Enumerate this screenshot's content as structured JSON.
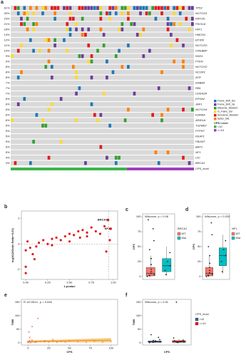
{
  "chart_data": [
    {
      "type": "oncoprint",
      "panel": "a",
      "categories": [
        "TP53",
        "NOTCH1",
        "KMT2D",
        "PIK3CA",
        "FAT1",
        "HMCN1",
        "EP300",
        "NOTCH3",
        "CREBBP",
        "NSD1",
        "PTEN",
        "NOTCH2",
        "NCOR1",
        "ATR",
        "ERBB4",
        "RB1",
        "CDKN2A",
        "EPHA2",
        "JAK1",
        "NOTCH4",
        "KDM6A",
        "ARID1A",
        "TGFBR2",
        "PTPRT",
        "KEAP1",
        "FBXW7",
        "BAP1",
        "NF1",
        "CIC",
        "BRCA1"
      ],
      "values": [
        61,
        30,
        23,
        21,
        18,
        14,
        12,
        11,
        10,
        9,
        9,
        8,
        8,
        8,
        7,
        7,
        7,
        6,
        6,
        6,
        6,
        6,
        5,
        5,
        5,
        5,
        5,
        5,
        4,
        4
      ],
      "value_labels": [
        "61%",
        "30%",
        "23%",
        "21%",
        "18%",
        "14%",
        "12%",
        "11%",
        "10%",
        "9%",
        "9%",
        "8%",
        "8%",
        "8%",
        "7%",
        "7%",
        "7%",
        "6%",
        "6%",
        "6%",
        "6%",
        "6%",
        "5%",
        "5%",
        "5%",
        "5%",
        "5%",
        "5%",
        "4%",
        "4%"
      ],
      "mutation_types": [
        {
          "name": "Frame_Shift_Del",
          "color": "#1f78b4"
        },
        {
          "name": "Frame_Shift_Ins",
          "color": "#6a3d9a"
        },
        {
          "name": "Missense_Mutation",
          "color": "#33a02c"
        },
        {
          "name": "In_Frame_Del",
          "color": "#ffd92f"
        },
        {
          "name": "Nonsense_Mutation",
          "color": "#e31a1c"
        },
        {
          "name": "Splice_Site",
          "color": "#ff7f00"
        }
      ],
      "group_title": "CPS Level",
      "group_bar_label": "CPS_level",
      "groups": [
        {
          "name": "<10",
          "color": "#3cb44b",
          "size": 38
        },
        {
          "name": ">=10",
          "color": "#a040c0",
          "size": 22
        }
      ]
    },
    {
      "type": "scatter",
      "panel": "b",
      "xlabel": "1-pvalue",
      "ylabel": "log10(1/Odds Ratio+0.01)",
      "color": "#e41a1c",
      "x": [
        0.0,
        0.0,
        0.02,
        0.05,
        0.08,
        0.12,
        0.15,
        0.2,
        0.25,
        0.3,
        0.35,
        0.4,
        0.45,
        0.5,
        0.55,
        0.6,
        0.62,
        0.65,
        0.7,
        0.75,
        0.8,
        0.85,
        0.9,
        0.0,
        0.1,
        0.3,
        0.5,
        0.7,
        0.92,
        0.96
      ],
      "y": [
        -0.5,
        -1.8,
        0.2,
        -0.3,
        -0.8,
        -0.2,
        0.1,
        0.3,
        0.0,
        0.4,
        0.5,
        0.3,
        0.6,
        0.8,
        0.7,
        1.0,
        0.5,
        1.1,
        0.9,
        1.3,
        1.0,
        0.8,
        1.4,
        -2.3,
        -1.2,
        -0.1,
        0.2,
        0.6,
        -0.6,
        0.3
      ],
      "highlights": [
        {
          "name": "BRCA1",
          "x": 0.94,
          "y": 1.9
        },
        {
          "name": "NF1",
          "x": 0.97,
          "y": 1.2
        }
      ],
      "vline": 0.95,
      "hline": 0,
      "xlim": [
        -0.05,
        1.05
      ],
      "ylim": [
        -2.8,
        2.6
      ],
      "xticks": [
        {
          "value": 0,
          "label": "0.00"
        },
        {
          "value": 0.25,
          "label": "0.25"
        },
        {
          "value": 0.5,
          "label": "0.50"
        },
        {
          "value": 0.75,
          "label": "0.75"
        },
        {
          "value": 1,
          "label": "1.00"
        }
      ],
      "yticks": [
        -2,
        0,
        2
      ]
    },
    {
      "type": "box",
      "panel": "c",
      "ylabel": "CPS",
      "annotation": "Wilcoxon, p = 0.06",
      "legend_title": "BRCA1",
      "ylim": [
        -5,
        105
      ],
      "yticks": [
        0,
        25,
        50,
        75,
        100
      ],
      "boxes": [
        {
          "name": "WT",
          "color": "#f8766d",
          "min": 0,
          "q1": 1,
          "median": 5,
          "q3": 15,
          "max": 35,
          "points": [
            0,
            1,
            2,
            3,
            5,
            8,
            12,
            20,
            30,
            45,
            60,
            80,
            95
          ]
        },
        {
          "name": "Mut",
          "color": "#00bfc4",
          "min": 2,
          "q1": 8,
          "median": 18,
          "q3": 30,
          "max": 50,
          "points": [
            3,
            10,
            18,
            25,
            40
          ]
        }
      ]
    },
    {
      "type": "box",
      "panel": "d",
      "ylabel": "CPS",
      "annotation": "Wilcoxon, p = 0.033",
      "legend_title": "NF1",
      "ylim": [
        -5,
        105
      ],
      "yticks": [
        0,
        25,
        50,
        75,
        100
      ],
      "boxes": [
        {
          "name": "WT",
          "color": "#f8766d",
          "min": 0,
          "q1": 1,
          "median": 5,
          "q3": 15,
          "max": 35,
          "points": [
            0,
            1,
            2,
            4,
            6,
            10,
            15,
            22,
            35,
            50,
            70,
            90
          ]
        },
        {
          "name": "Mut",
          "color": "#00bfc4",
          "min": 5,
          "q1": 18,
          "median": 35,
          "q3": 48,
          "max": 70,
          "points": [
            8,
            25,
            35,
            45,
            60
          ]
        }
      ]
    },
    {
      "type": "scatter_fit",
      "panel": "e",
      "xlabel": "CPS",
      "ylabel": "TMB",
      "annotation": "R = 0.0514 , p = 0.546",
      "color": "#e41a1c",
      "x": [
        0,
        0,
        1,
        1,
        2,
        3,
        5,
        5,
        8,
        10,
        10,
        12,
        15,
        20,
        20,
        25,
        30,
        35,
        40,
        45,
        50,
        60,
        70,
        80,
        90,
        100,
        0,
        2,
        5,
        30
      ],
      "y": [
        2,
        5,
        3,
        40,
        8,
        1,
        4,
        10,
        2,
        6,
        3,
        90,
        5,
        4,
        8,
        3,
        6,
        2,
        5,
        3,
        7,
        4,
        2,
        5,
        3,
        6,
        150,
        20,
        60,
        12
      ],
      "fit": {
        "x": [
          0,
          100
        ],
        "y": [
          5,
          10
        ],
        "lower": [
          2,
          2
        ],
        "upper": [
          8,
          18
        ],
        "color": "#f5a623"
      },
      "xlim": [
        -8,
        108
      ],
      "ylim": [
        -8,
        160
      ],
      "xticks": [
        0,
        25,
        50,
        75,
        100
      ],
      "yticks": [
        0,
        50,
        100,
        150
      ]
    },
    {
      "type": "box",
      "panel": "f",
      "xlabel": "CPS",
      "ylabel": "TMB",
      "annotation": "Wilcoxon, p = 0.91",
      "legend_title": "CPS_level",
      "ylim": [
        -8,
        160
      ],
      "yticks": [
        0,
        50,
        100,
        150
      ],
      "boxes": [
        {
          "name": "<10",
          "color": "#3b5ba5",
          "min": 0,
          "q1": 2,
          "median": 4,
          "q3": 7,
          "max": 12,
          "points": [
            1,
            2,
            3,
            3,
            4,
            5,
            5,
            6,
            7,
            9,
            12,
            20,
            30
          ]
        },
        {
          "name": ">=10",
          "color": "#e41a1c",
          "min": 0,
          "q1": 2,
          "median": 4,
          "q3": 8,
          "max": 14,
          "points": [
            1,
            2,
            3,
            4,
            5,
            6,
            8,
            10,
            18,
            150
          ]
        }
      ]
    }
  ]
}
